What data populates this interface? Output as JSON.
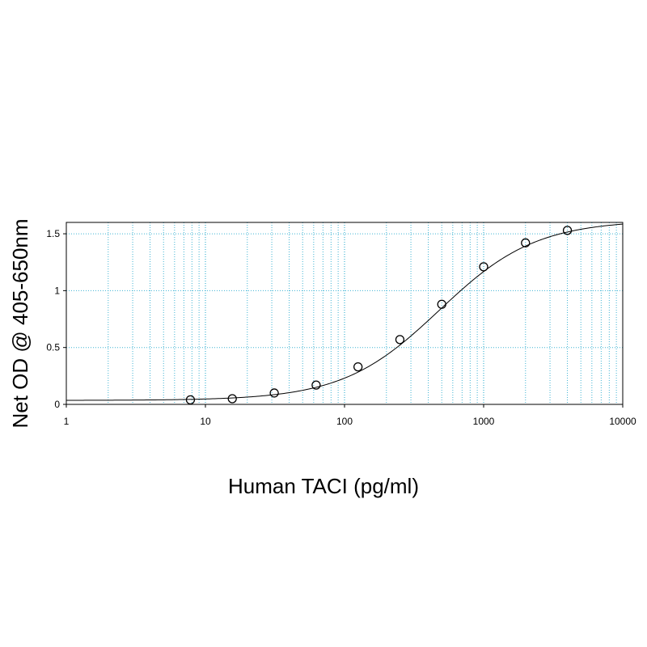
{
  "chart_data": {
    "type": "scatter",
    "title": "",
    "xlabel": "Human TACI (pg/ml)",
    "ylabel": "Net OD @ 405-650nm",
    "x_scale": "log",
    "xlim": [
      1,
      10000
    ],
    "ylim": [
      0,
      1.6
    ],
    "x_ticks": [
      "1",
      "10",
      "100",
      "1000",
      "10000"
    ],
    "y_ticks": [
      "0",
      "0.5",
      "1",
      "1.5"
    ],
    "grid": true,
    "legend": "none",
    "colors": {
      "grid": "#3fb3d3",
      "curve": "#000000",
      "points": "#000000"
    },
    "series": [
      {
        "marker": "open-circle",
        "x": [
          7.8,
          15.6,
          31.25,
          62.5,
          125,
          250,
          500,
          1000,
          2000,
          4000
        ],
        "y": [
          0.04,
          0.05,
          0.1,
          0.17,
          0.33,
          0.57,
          0.88,
          1.21,
          1.42,
          1.53
        ]
      }
    ],
    "fit_curve": {
      "model": "4PL",
      "bottom": 0.035,
      "top": 1.62,
      "ec50": 480,
      "hill": 1.25
    }
  }
}
